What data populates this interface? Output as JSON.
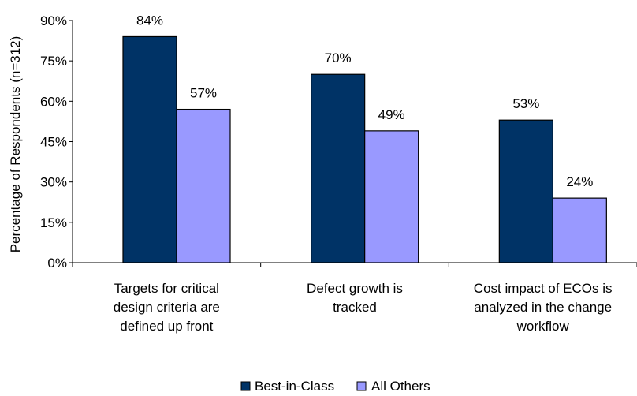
{
  "chart_data": {
    "type": "bar",
    "ylabel": "Percentage of Respondents (n=312)",
    "ylim": [
      0,
      90
    ],
    "yticks": [
      "0%",
      "15%",
      "30%",
      "45%",
      "60%",
      "75%",
      "90%"
    ],
    "ytick_values": [
      0,
      15,
      30,
      45,
      60,
      75,
      90
    ],
    "categories": [
      [
        "Targets for critical",
        "design criteria are",
        "defined up front"
      ],
      [
        "Defect growth is",
        "tracked"
      ],
      [
        "Cost impact of ECOs is",
        "analyzed in the change",
        "workflow"
      ]
    ],
    "series": [
      {
        "name": "Best-in-Class",
        "values": [
          84,
          70,
          53
        ],
        "labels": [
          "84%",
          "70%",
          "53%"
        ],
        "color": "#003366"
      },
      {
        "name": "All Others",
        "values": [
          57,
          49,
          24
        ],
        "labels": [
          "57%",
          "49%",
          "24%"
        ],
        "color": "#9999FF"
      }
    ],
    "grid": false,
    "legend": "bottom"
  }
}
